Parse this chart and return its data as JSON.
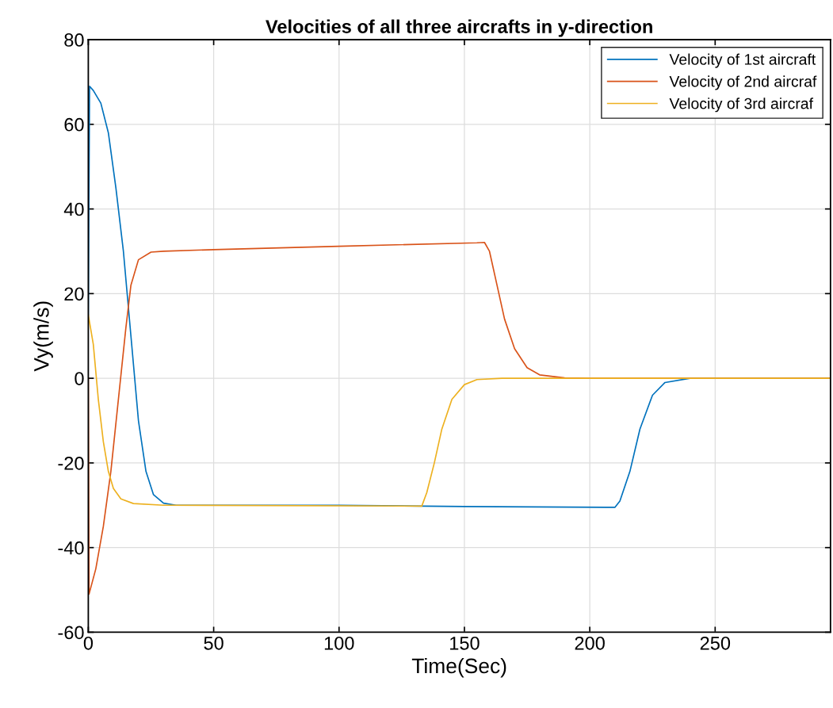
{
  "chart_data": {
    "type": "line",
    "title": "Velocities of all three aircrafts in y-direction",
    "xlabel": "Time(Sec)",
    "ylabel": "Vy(m/s)",
    "xlim": [
      0,
      296
    ],
    "ylim": [
      -60,
      80
    ],
    "xticks": [
      0,
      50,
      100,
      150,
      200,
      250
    ],
    "yticks": [
      -60,
      -40,
      -20,
      0,
      20,
      40,
      60,
      80
    ],
    "grid": true,
    "legend": "top right",
    "series": [
      {
        "name": "Velocity of 1st aircraft",
        "color": "#0072bd",
        "x": [
          0,
          0.5,
          2,
          5,
          8,
          11,
          14,
          17,
          20,
          23,
          26,
          30,
          35,
          100,
          150,
          210,
          212,
          216,
          220,
          225,
          230,
          240,
          296
        ],
        "values": [
          15,
          69,
          68,
          65,
          58,
          45,
          30,
          10,
          -10,
          -22,
          -27.5,
          -29.5,
          -30,
          -30,
          -30.3,
          -30.5,
          -29,
          -22,
          -12,
          -4,
          -1,
          0,
          0
        ]
      },
      {
        "name": "Velocity of 2nd aircraf",
        "color": "#d95319",
        "x": [
          0,
          0.3,
          3,
          6,
          9,
          12,
          15,
          17,
          20,
          25,
          30,
          50,
          100,
          155,
          158,
          160,
          163,
          166,
          170,
          175,
          180,
          190,
          200,
          296
        ],
        "values": [
          0,
          -51,
          -45,
          -35,
          -22,
          -5,
          12,
          22,
          28,
          29.8,
          30,
          30.4,
          31.2,
          32,
          32.1,
          30,
          22,
          14,
          7,
          2.5,
          0.8,
          0.1,
          0,
          0
        ]
      },
      {
        "name": "Velocity of 3rd aircraf",
        "color": "#edb120",
        "x": [
          0,
          2,
          4,
          6,
          8,
          10,
          13,
          18,
          30,
          133,
          135,
          138,
          141,
          145,
          150,
          155,
          165,
          296
        ],
        "values": [
          15,
          8,
          -5,
          -15,
          -22,
          -26,
          -28.5,
          -29.6,
          -30,
          -30.2,
          -27,
          -20,
          -12,
          -5,
          -1.5,
          -0.3,
          0,
          0
        ]
      }
    ]
  }
}
